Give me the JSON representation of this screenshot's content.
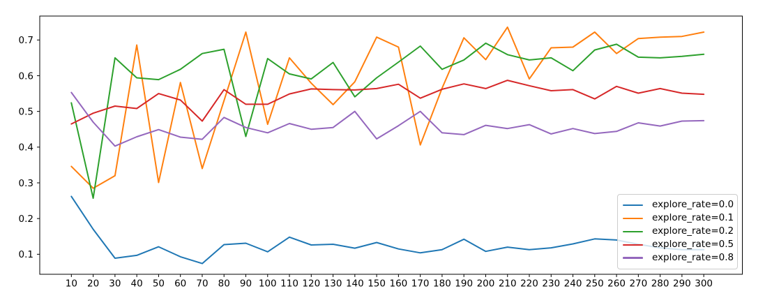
{
  "chart_data": {
    "type": "line",
    "title": "",
    "xlabel": "",
    "ylabel": "",
    "grid": false,
    "legend_position": "lower right",
    "xlim": [
      -4.5,
      317.7
    ],
    "ylim": [
      0.044,
      0.767
    ],
    "xticks": [
      10,
      20,
      30,
      40,
      50,
      60,
      70,
      80,
      90,
      100,
      110,
      120,
      130,
      140,
      150,
      160,
      170,
      180,
      190,
      200,
      210,
      220,
      230,
      240,
      250,
      260,
      270,
      280,
      290,
      300
    ],
    "yticks": [
      0.1,
      0.2,
      0.3,
      0.4,
      0.5,
      0.6,
      0.7
    ],
    "x": [
      10,
      20,
      30,
      40,
      50,
      60,
      70,
      80,
      90,
      100,
      110,
      120,
      130,
      140,
      150,
      160,
      170,
      180,
      190,
      200,
      210,
      220,
      230,
      240,
      250,
      260,
      270,
      280,
      290,
      300
    ],
    "series": [
      {
        "name": "explore_rate=0.0",
        "color": "#1f77b4",
        "values": [
          0.262,
          0.17,
          0.089,
          0.097,
          0.121,
          0.093,
          0.074,
          0.127,
          0.131,
          0.107,
          0.148,
          0.126,
          0.128,
          0.117,
          0.133,
          0.115,
          0.104,
          0.113,
          0.142,
          0.108,
          0.12,
          0.113,
          0.118,
          0.129,
          0.143,
          0.14,
          0.128,
          0.118,
          0.113,
          0.113
        ]
      },
      {
        "name": "explore_rate=0.1",
        "color": "#ff7f0e",
        "values": [
          0.346,
          0.285,
          0.32,
          0.686,
          0.301,
          0.581,
          0.34,
          0.53,
          0.722,
          0.464,
          0.65,
          0.579,
          0.519,
          0.583,
          0.708,
          0.68,
          0.406,
          0.565,
          0.706,
          0.645,
          0.736,
          0.591,
          0.678,
          0.68,
          0.722,
          0.662,
          0.704,
          0.708,
          0.71,
          0.722
        ]
      },
      {
        "name": "explore_rate=0.2",
        "color": "#2ca02c",
        "values": [
          0.524,
          0.257,
          0.65,
          0.594,
          0.589,
          0.618,
          0.662,
          0.674,
          0.43,
          0.648,
          0.605,
          0.591,
          0.637,
          0.541,
          0.594,
          0.638,
          0.683,
          0.618,
          0.644,
          0.691,
          0.659,
          0.644,
          0.65,
          0.614,
          0.672,
          0.688,
          0.652,
          0.65,
          0.654,
          0.66
        ]
      },
      {
        "name": "explore_rate=0.5",
        "color": "#d62728",
        "values": [
          0.465,
          0.495,
          0.515,
          0.508,
          0.55,
          0.532,
          0.473,
          0.561,
          0.52,
          0.52,
          0.549,
          0.563,
          0.561,
          0.56,
          0.564,
          0.576,
          0.537,
          0.562,
          0.577,
          0.564,
          0.587,
          0.572,
          0.558,
          0.561,
          0.535,
          0.57,
          0.551,
          0.564,
          0.551,
          0.548
        ]
      },
      {
        "name": "explore_rate=0.8",
        "color": "#9467bd",
        "values": [
          0.553,
          0.47,
          0.403,
          0.429,
          0.449,
          0.428,
          0.422,
          0.483,
          0.455,
          0.44,
          0.466,
          0.45,
          0.455,
          0.5,
          0.423,
          0.46,
          0.5,
          0.44,
          0.435,
          0.461,
          0.452,
          0.463,
          0.437,
          0.452,
          0.438,
          0.444,
          0.468,
          0.459,
          0.473,
          0.474
        ]
      }
    ],
    "axis_color": "#000000",
    "tick_label_color": "#000000"
  }
}
